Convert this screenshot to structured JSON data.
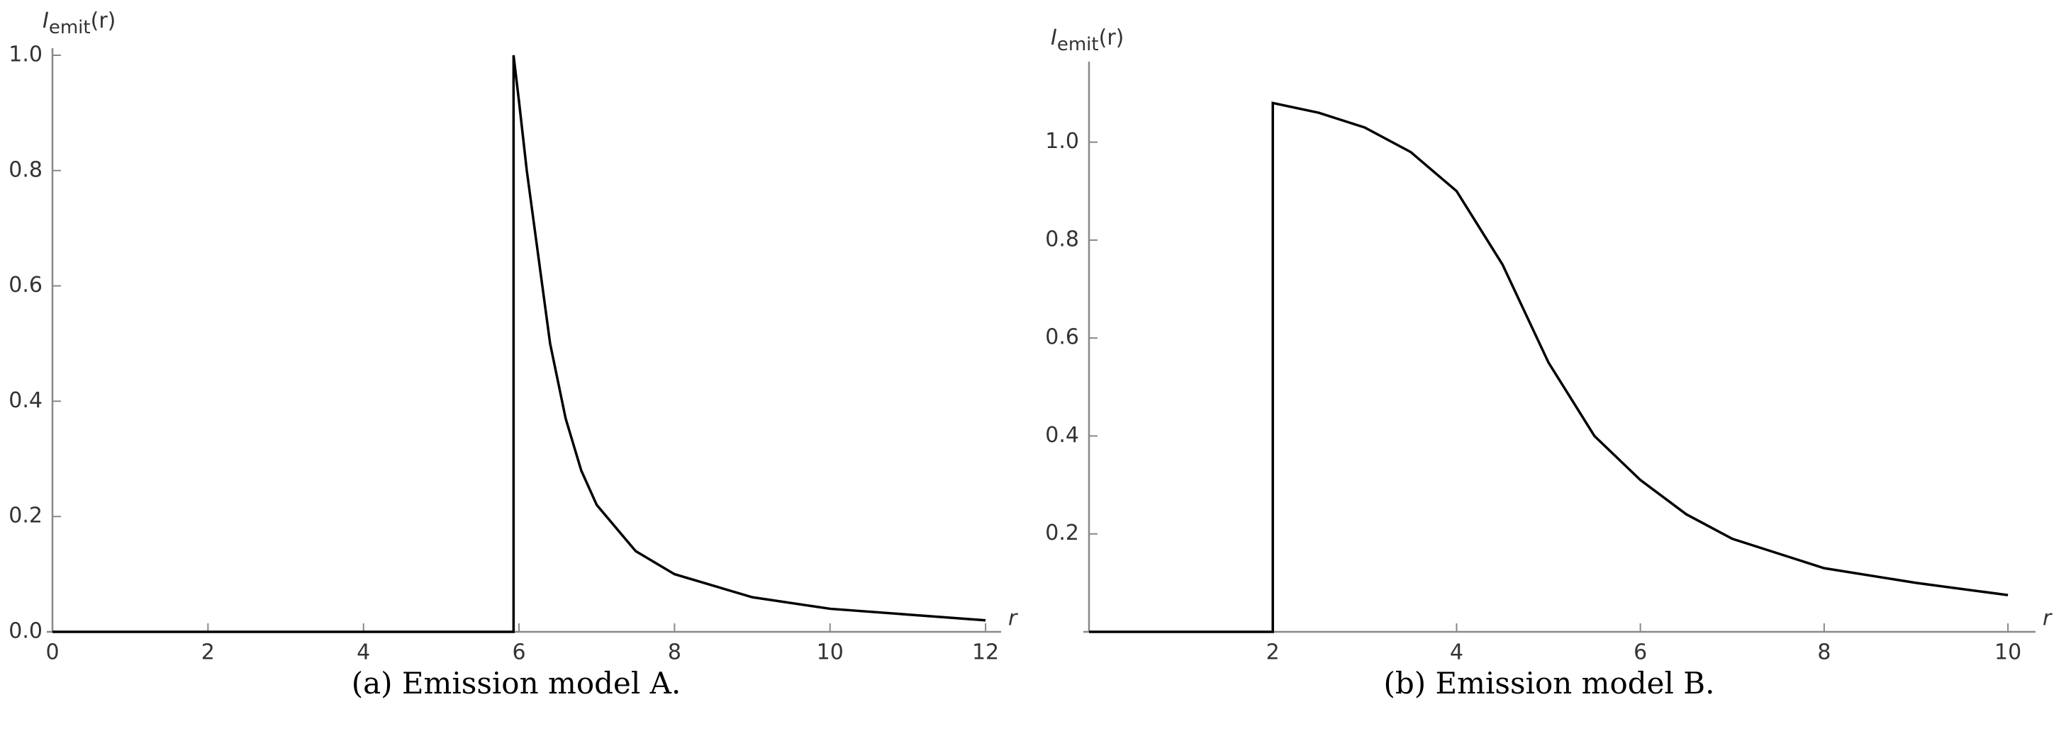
{
  "chart_data": [
    {
      "type": "line",
      "ylabel": {
        "main": "I",
        "sub": "emit",
        "arg": "(r)"
      },
      "xlabel": "r",
      "caption": "(a) Emission model A.",
      "xlim": [
        0,
        12.2
      ],
      "ylim": [
        0,
        1.0
      ],
      "xticks": [
        0,
        2,
        4,
        6,
        8,
        10,
        12
      ],
      "yticks": [
        {
          "value": 0,
          "label": "0.0"
        },
        0.2,
        0.4,
        0.6,
        0.8,
        {
          "value": 1,
          "label": "1.0"
        }
      ],
      "color": "#000000",
      "x": [
        0,
        5.93,
        5.93,
        6.0,
        6.1,
        6.2,
        6.4,
        6.6,
        6.8,
        7.0,
        7.5,
        8,
        9,
        10,
        11,
        12
      ],
      "values": [
        0,
        0,
        1.0,
        0.92,
        0.8,
        0.7,
        0.5,
        0.37,
        0.28,
        0.22,
        0.14,
        0.1,
        0.06,
        0.04,
        0.03,
        0.02
      ]
    },
    {
      "type": "line",
      "ylabel": {
        "main": "I",
        "sub": "emit",
        "arg": "(r)"
      },
      "xlabel": "r",
      "caption": "(b) Emission model B.",
      "xlim": [
        0,
        10.3
      ],
      "ylim": [
        0,
        1.15
      ],
      "xticks": [
        2,
        4,
        6,
        8,
        10
      ],
      "yticks": [
        0.2,
        0.4,
        0.6,
        0.8,
        {
          "value": 1,
          "label": "1.0"
        }
      ],
      "color": "#000000",
      "x": [
        0,
        2,
        2,
        2.5,
        3,
        3.5,
        4,
        4.5,
        5,
        5.5,
        6,
        6.5,
        7,
        8,
        9,
        10
      ],
      "values": [
        0,
        0,
        1.08,
        1.06,
        1.03,
        0.98,
        0.9,
        0.75,
        0.55,
        0.4,
        0.31,
        0.24,
        0.19,
        0.13,
        0.1,
        0.075
      ]
    }
  ]
}
